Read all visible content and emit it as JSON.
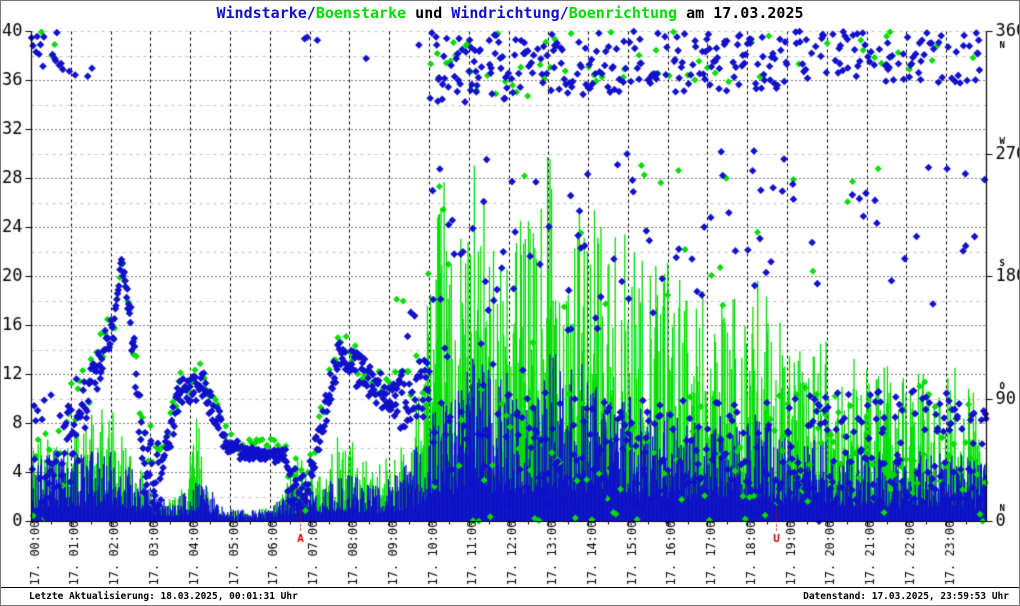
{
  "title": {
    "segments": [
      {
        "text": "Windstarke/",
        "color_key": "wind"
      },
      {
        "text": "Boenstarke",
        "color_key": "gust"
      },
      {
        "text": " und ",
        "color_key": "text"
      },
      {
        "text": "Windrichtung/",
        "color_key": "wind"
      },
      {
        "text": "Boenrichtung",
        "color_key": "gust"
      },
      {
        "text": " am 17.03.2025",
        "color_key": "text"
      }
    ]
  },
  "footer": {
    "left": "Letzte Aktualisierung: 18.03.2025, 00:01:31 Uhr",
    "right": "Datenstand: 17.03.2025, 23:59:53 Uhr"
  },
  "colors": {
    "wind": "#1111cc",
    "gust": "#00dd00",
    "text": "#000000",
    "grid_major": "#000000",
    "grid_minor": "#c3c3c3",
    "axis": "#000000",
    "sun_marker": "#cc0000",
    "background": "#ffffff"
  },
  "chart_data": {
    "type": "scatter+impulse",
    "title": "Windstarke/Boenstarke und Windrichtung/Boenrichtung am 17.03.2025",
    "x_axis": {
      "range_hours": [
        0,
        24
      ],
      "labels": [
        "17. 00:00",
        "17. 01:00",
        "17. 02:00",
        "17. 03:00",
        "17. 04:00",
        "17. 05:00",
        "17. 06:00",
        "17. 07:00",
        "17. 08:00",
        "17. 09:00",
        "17. 10:00",
        "17. 11:00",
        "17. 12:00",
        "17. 13:00",
        "17. 14:00",
        "17. 15:00",
        "17. 16:00",
        "17. 17:00",
        "17. 18:00",
        "17. 19:00",
        "17. 20:00",
        "17. 21:00",
        "17. 22:00",
        "17. 23:00"
      ]
    },
    "y_left": {
      "range": [
        0,
        40
      ],
      "ticks": [
        0,
        4,
        8,
        12,
        16,
        20,
        24,
        28,
        32,
        36,
        40
      ],
      "minor_step": 2
    },
    "y_right": {
      "range": [
        0,
        360
      ],
      "ticks": [
        {
          "v": 360,
          "label": "360",
          "compass": "N",
          "compass_below": true
        },
        {
          "v": 270,
          "label": "270",
          "compass": "W",
          "compass_below": false
        },
        {
          "v": 180,
          "label": "180",
          "compass": "S",
          "compass_below": false
        },
        {
          "v": 90,
          "label": "90",
          "compass": "O",
          "compass_below": false
        },
        {
          "v": 0,
          "label": "0",
          "compass": "N",
          "compass_below": false
        }
      ]
    },
    "sun_markers": [
      {
        "t": 6.75,
        "label": "A"
      },
      {
        "t": 18.72,
        "label": "U"
      }
    ],
    "render": {
      "impulse_steps": 1200,
      "seed": 42
    },
    "series": {
      "boenstarke": {
        "name": "Boenstarke",
        "type": "impulse",
        "color_key": "gust",
        "envelope": [
          [
            0,
            7
          ],
          [
            0.4,
            8.5
          ],
          [
            0.8,
            7
          ],
          [
            1.2,
            8
          ],
          [
            1.6,
            9
          ],
          [
            2.0,
            9.5
          ],
          [
            2.3,
            8
          ],
          [
            2.6,
            5
          ],
          [
            3.0,
            3
          ],
          [
            3.5,
            2
          ],
          [
            3.9,
            3
          ],
          [
            4.15,
            10
          ],
          [
            4.4,
            3
          ],
          [
            4.8,
            1.2
          ],
          [
            5.5,
            0.8
          ],
          [
            6.2,
            1.5
          ],
          [
            6.6,
            5.5
          ],
          [
            6.9,
            6
          ],
          [
            7.2,
            4
          ],
          [
            7.6,
            6.5
          ],
          [
            7.9,
            8
          ],
          [
            8.3,
            5.5
          ],
          [
            8.7,
            4.5
          ],
          [
            9.1,
            6
          ],
          [
            9.5,
            8
          ],
          [
            9.75,
            12
          ],
          [
            9.95,
            19
          ],
          [
            10.15,
            24
          ],
          [
            10.35,
            28.5
          ],
          [
            10.6,
            22
          ],
          [
            10.9,
            25
          ],
          [
            11.2,
            30.5
          ],
          [
            11.5,
            24
          ],
          [
            11.8,
            27
          ],
          [
            12.1,
            24
          ],
          [
            12.4,
            26
          ],
          [
            12.7,
            23
          ],
          [
            13.0,
            35.5
          ],
          [
            13.3,
            27
          ],
          [
            13.6,
            30
          ],
          [
            13.9,
            25
          ],
          [
            14.3,
            27
          ],
          [
            14.7,
            23
          ],
          [
            15.1,
            24
          ],
          [
            15.5,
            21
          ],
          [
            16.0,
            22.5
          ],
          [
            16.4,
            19
          ],
          [
            16.8,
            21
          ],
          [
            17.2,
            18
          ],
          [
            17.6,
            19
          ],
          [
            18.0,
            22
          ],
          [
            18.4,
            19
          ],
          [
            18.8,
            17
          ],
          [
            19.2,
            15
          ],
          [
            19.6,
            14
          ],
          [
            20.0,
            15
          ],
          [
            20.4,
            13
          ],
          [
            20.8,
            14
          ],
          [
            21.2,
            12
          ],
          [
            21.6,
            13
          ],
          [
            22.0,
            12
          ],
          [
            22.4,
            13
          ],
          [
            22.8,
            11
          ],
          [
            23.2,
            13
          ],
          [
            23.6,
            12
          ],
          [
            24,
            11
          ]
        ]
      },
      "windstarke": {
        "name": "Windstarke",
        "type": "impulse",
        "color_key": "wind",
        "envelope": [
          [
            0,
            5
          ],
          [
            0.5,
            6
          ],
          [
            1,
            5.5
          ],
          [
            1.5,
            6
          ],
          [
            2,
            6.5
          ],
          [
            2.5,
            4.5
          ],
          [
            3,
            2.5
          ],
          [
            3.5,
            1.5
          ],
          [
            4,
            3
          ],
          [
            4.3,
            4
          ],
          [
            4.7,
            1.5
          ],
          [
            5.2,
            1
          ],
          [
            6,
            1
          ],
          [
            6.5,
            3
          ],
          [
            7,
            2.5
          ],
          [
            7.5,
            3.5
          ],
          [
            8,
            4
          ],
          [
            8.5,
            3
          ],
          [
            9,
            3.5
          ],
          [
            9.5,
            5
          ],
          [
            9.8,
            7
          ],
          [
            10,
            9
          ],
          [
            10.3,
            12
          ],
          [
            10.6,
            10
          ],
          [
            11,
            13
          ],
          [
            11.3,
            15
          ],
          [
            11.6,
            11
          ],
          [
            12,
            13
          ],
          [
            12.4,
            11
          ],
          [
            12.8,
            12
          ],
          [
            13.1,
            14.5
          ],
          [
            13.4,
            12
          ],
          [
            13.8,
            13
          ],
          [
            14.2,
            11
          ],
          [
            14.6,
            10
          ],
          [
            15,
            10.5
          ],
          [
            15.4,
            9
          ],
          [
            15.8,
            10
          ],
          [
            16.2,
            8.5
          ],
          [
            16.6,
            9
          ],
          [
            17,
            8
          ],
          [
            17.4,
            9
          ],
          [
            17.8,
            8
          ],
          [
            18.2,
            9
          ],
          [
            18.6,
            8
          ],
          [
            19,
            7
          ],
          [
            19.4,
            6.5
          ],
          [
            19.8,
            7
          ],
          [
            20.2,
            6
          ],
          [
            20.6,
            6.5
          ],
          [
            21,
            5.5
          ],
          [
            21.4,
            6
          ],
          [
            21.8,
            5
          ],
          [
            22.2,
            6
          ],
          [
            22.6,
            5.5
          ],
          [
            23,
            6
          ],
          [
            23.4,
            5.5
          ],
          [
            23.8,
            5
          ],
          [
            24,
            5
          ]
        ]
      },
      "boenrichtung": {
        "name": "Boenrichtung",
        "type": "scatter",
        "color_key": "gust",
        "samples": 340,
        "offset_deg": 7,
        "marker_size": 3.5,
        "use_segments_of": "windrichtung"
      },
      "windrichtung": {
        "name": "Windrichtung",
        "type": "scatter",
        "color_key": "wind",
        "samples": 1280,
        "offset_deg": 0,
        "marker_size": 3.8,
        "segments": [
          [
            0.0,
            0.75,
            [
              [
                0.72,
                40,
                50,
                52
              ],
              [
                0.28,
                348,
                345,
                13
              ]
            ]
          ],
          [
            0.75,
            1.35,
            [
              [
                0.9,
                55,
                80,
                38
              ],
              [
                0.1,
                332,
                330,
                8
              ]
            ]
          ],
          [
            1.35,
            1.8,
            [
              [
                0.97,
                85,
                125,
                15
              ],
              [
                0.03,
                330,
                330,
                6
              ]
            ]
          ],
          [
            1.8,
            2.1,
            [
              [
                1,
                128,
                142,
                11
              ]
            ]
          ],
          [
            2.1,
            2.27,
            [
              [
                1,
                148,
                193,
                8
              ]
            ]
          ],
          [
            2.27,
            2.5,
            [
              [
                1,
                185,
                150,
                9
              ]
            ]
          ],
          [
            2.5,
            2.8,
            [
              [
                1,
                140,
                55,
                18
              ]
            ]
          ],
          [
            2.8,
            3.3,
            [
              [
                1,
                42,
                30,
                26
              ]
            ]
          ],
          [
            3.3,
            3.7,
            [
              [
                1,
                40,
                92,
                11
              ]
            ]
          ],
          [
            3.7,
            4.35,
            [
              [
                1,
                96,
                100,
                10
              ]
            ]
          ],
          [
            4.35,
            4.8,
            [
              [
                1,
                95,
                68,
                9
              ]
            ]
          ],
          [
            4.8,
            5.2,
            [
              [
                1,
                60,
                52,
                7
              ]
            ]
          ],
          [
            5.2,
            6.4,
            [
              [
                1,
                50,
                48,
                5
              ]
            ]
          ],
          [
            6.4,
            6.95,
            [
              [
                0.97,
                32,
                14,
                16
              ],
              [
                0.03,
                355,
                355,
                6
              ]
            ]
          ],
          [
            6.95,
            7.7,
            [
              [
                0.97,
                28,
                120,
                12
              ],
              [
                0.03,
                358,
                358,
                5
              ]
            ]
          ],
          [
            7.7,
            8.15,
            [
              [
                1,
                124,
                116,
                9
              ]
            ]
          ],
          [
            8.15,
            9.1,
            [
              [
                0.96,
                112,
                88,
                13
              ],
              [
                0.04,
                345,
                345,
                12
              ]
            ]
          ],
          [
            9.1,
            10.0,
            [
              [
                0.85,
                85,
                100,
                22
              ],
              [
                0.08,
                350,
                345,
                12
              ],
              [
                0.07,
                165,
                140,
                35
              ]
            ]
          ],
          [
            10.0,
            13.0,
            [
              [
                0.5,
                334,
                330,
                26
              ],
              [
                0.2,
                195,
                185,
                78
              ],
              [
                0.3,
                58,
                55,
                44
              ]
            ]
          ],
          [
            13.0,
            19.0,
            [
              [
                0.42,
                336,
                340,
                23
              ],
              [
                0.13,
                205,
                212,
                65
              ],
              [
                0.45,
                50,
                46,
                41
              ]
            ]
          ],
          [
            19.0,
            24.0,
            [
              [
                0.3,
                344,
                340,
                19
              ],
              [
                0.08,
                225,
                205,
                52
              ],
              [
                0.62,
                50,
                56,
                43
              ]
            ]
          ]
        ]
      }
    }
  }
}
